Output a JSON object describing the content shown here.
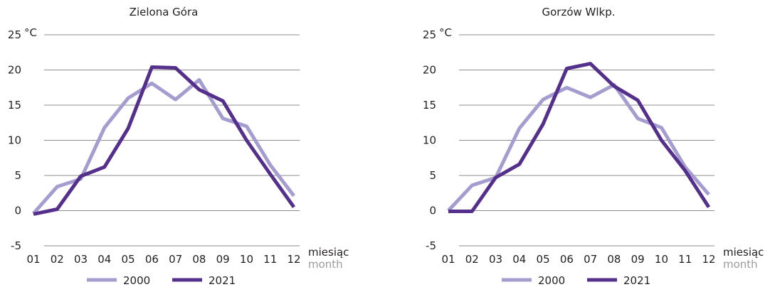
{
  "chart_data": [
    {
      "type": "line",
      "title": "Zielona Góra",
      "unit": "°C",
      "categories": [
        "01",
        "02",
        "03",
        "04",
        "05",
        "06",
        "07",
        "08",
        "09",
        "10",
        "11",
        "12"
      ],
      "xlabel": "miesiąc",
      "xlabel_en": "month",
      "ylim": [
        -5,
        25
      ],
      "yticks": [
        -5,
        0,
        5,
        10,
        15,
        20,
        25
      ],
      "grid": true,
      "legend_position": "bottom",
      "series": [
        {
          "name": "2000",
          "color": "#a59ccf",
          "values": [
            -0.4,
            3.4,
            4.5,
            11.8,
            16.0,
            18.1,
            15.8,
            18.6,
            13.1,
            12.0,
            6.5,
            2.1
          ]
        },
        {
          "name": "2021",
          "color": "#54308c",
          "values": [
            -0.5,
            0.2,
            4.9,
            6.2,
            11.7,
            20.4,
            20.3,
            17.2,
            15.6,
            10.0,
            5.2,
            0.5
          ]
        }
      ]
    },
    {
      "type": "line",
      "title": "Gorzów Wlkp.",
      "unit": "°C",
      "categories": [
        "01",
        "02",
        "03",
        "04",
        "05",
        "06",
        "07",
        "08",
        "09",
        "10",
        "11",
        "12"
      ],
      "xlabel": "miesiąc",
      "xlabel_en": "month",
      "ylim": [
        -5,
        25
      ],
      "yticks": [
        -5,
        0,
        5,
        10,
        15,
        20,
        25
      ],
      "grid": true,
      "legend_position": "bottom",
      "series": [
        {
          "name": "2000",
          "color": "#a59ccf",
          "values": [
            0.0,
            3.6,
            4.7,
            11.7,
            15.8,
            17.5,
            16.1,
            17.9,
            13.1,
            11.8,
            6.2,
            2.3
          ]
        },
        {
          "name": "2021",
          "color": "#54308c",
          "values": [
            -0.1,
            -0.1,
            4.7,
            6.6,
            12.3,
            20.2,
            20.9,
            17.7,
            15.7,
            10.0,
            5.7,
            0.5
          ]
        }
      ]
    }
  ]
}
